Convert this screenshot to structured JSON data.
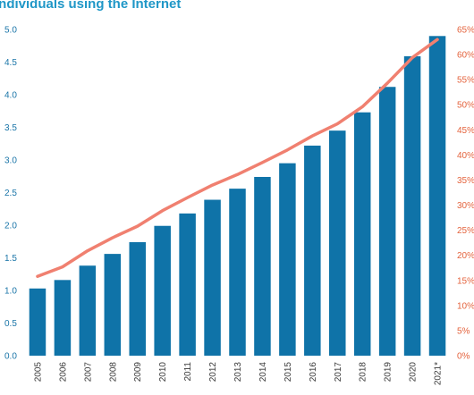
{
  "chart_data": {
    "type": "bar",
    "title": "Individuals using the Internet",
    "categories": [
      "2005",
      "2006",
      "2007",
      "2008",
      "2009",
      "2010",
      "2011",
      "2012",
      "2013",
      "2014",
      "2015",
      "2016",
      "2017",
      "2018",
      "2019",
      "2020",
      "2021*"
    ],
    "series": [
      {
        "type": "bar",
        "axis": "left",
        "color": "#0f73a8",
        "values": [
          1.03,
          1.16,
          1.38,
          1.56,
          1.74,
          1.99,
          2.18,
          2.39,
          2.56,
          2.74,
          2.95,
          3.22,
          3.45,
          3.73,
          4.12,
          4.59,
          4.9
        ]
      },
      {
        "type": "line",
        "axis": "right",
        "color": "#f08070",
        "values": [
          15.8,
          17.7,
          20.9,
          23.5,
          25.8,
          28.9,
          31.5,
          34.0,
          36.1,
          38.5,
          41.0,
          43.8,
          46.2,
          49.6,
          54.3,
          59.4,
          63.0
        ]
      }
    ],
    "left_axis": {
      "ylim": [
        0,
        5.0
      ],
      "ticks": [
        "0.0",
        "0.5",
        "1.0",
        "1.5",
        "2.0",
        "2.5",
        "3.0",
        "3.5",
        "4.0",
        "4.5",
        "5.0"
      ],
      "color": "#1a75a8"
    },
    "right_axis": {
      "ylim": [
        0,
        65
      ],
      "ticks": [
        "0%",
        "5%",
        "10%",
        "15%",
        "20%",
        "25%",
        "30%",
        "35%",
        "40%",
        "45%",
        "50%",
        "55%",
        "60%",
        "65%"
      ],
      "color": "#e4633d"
    },
    "xtick_color": "#3a3a3a",
    "grid": false,
    "legend": "none"
  }
}
